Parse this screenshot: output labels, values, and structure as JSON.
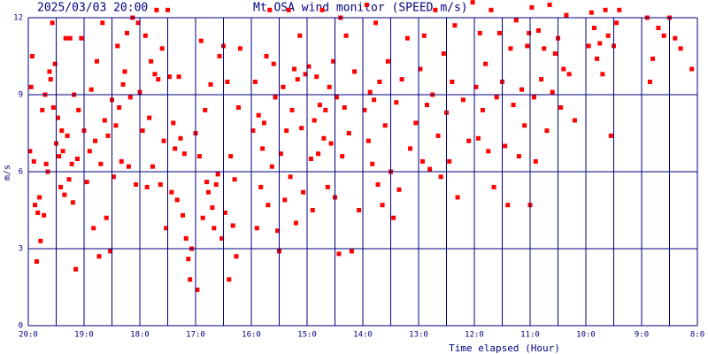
{
  "chart_data": {
    "type": "scatter",
    "timestamp": "2025/03/03 20:00",
    "title": "Mt.OSA wind monitor (SPEED m/s)",
    "y_label": "m/s",
    "x_label": "Time elapsed (Hour)",
    "color": "#ff0000",
    "grid_color": "#000080",
    "grid": true,
    "xlim": [
      20,
      8
    ],
    "xticks": [
      {
        "value": 20,
        "label": "20:0"
      },
      {
        "value": 19,
        "label": "19:0"
      },
      {
        "value": 18,
        "label": "18:0"
      },
      {
        "value": 17,
        "label": "17:0"
      },
      {
        "value": 16,
        "label": "16:0"
      },
      {
        "value": 15,
        "label": "15:0"
      },
      {
        "value": 14,
        "label": "14:0"
      },
      {
        "value": 13,
        "label": "13:0"
      },
      {
        "value": 12,
        "label": "12:0"
      },
      {
        "value": 11,
        "label": "11:0"
      },
      {
        "value": 10,
        "label": "10:0"
      },
      {
        "value": 9,
        "label": "9:0"
      },
      {
        "value": 8,
        "label": "8:0"
      }
    ],
    "x_minor_grid": [
      19.5,
      18.5,
      17.5,
      16.5,
      15.5,
      14.5,
      13.5,
      12.5,
      11.5,
      10.5,
      9.5,
      8.5
    ],
    "ylim": [
      0,
      12
    ],
    "yticks": [
      0,
      3,
      6,
      9,
      12
    ],
    "x": [
      19.97,
      19.95,
      19.93,
      19.9,
      19.88,
      19.85,
      19.83,
      19.8,
      19.78,
      19.75,
      19.72,
      19.7,
      19.68,
      19.65,
      19.62,
      19.6,
      19.57,
      19.55,
      19.52,
      19.5,
      19.47,
      19.45,
      19.42,
      19.4,
      19.38,
      19.35,
      19.33,
      19.3,
      19.27,
      19.25,
      19.22,
      19.2,
      19.18,
      19.15,
      19.12,
      19.1,
      19.05,
      19.0,
      18.95,
      18.9,
      18.87,
      18.83,
      18.8,
      18.77,
      18.73,
      18.7,
      18.67,
      18.63,
      18.6,
      18.57,
      18.53,
      18.5,
      18.47,
      18.43,
      18.4,
      18.37,
      18.33,
      18.3,
      18.27,
      18.23,
      18.2,
      18.17,
      18.13,
      18.07,
      18.03,
      18.0,
      17.95,
      17.9,
      17.87,
      17.83,
      17.8,
      17.77,
      17.73,
      17.7,
      17.67,
      17.63,
      17.6,
      17.57,
      17.53,
      17.5,
      17.47,
      17.43,
      17.4,
      17.37,
      17.33,
      17.3,
      17.27,
      17.23,
      17.2,
      17.17,
      17.13,
      17.1,
      17.07,
      17.0,
      16.97,
      16.93,
      16.9,
      16.87,
      16.83,
      16.8,
      16.77,
      16.73,
      16.7,
      16.67,
      16.63,
      16.6,
      16.57,
      16.53,
      16.5,
      16.47,
      16.43,
      16.4,
      16.37,
      16.33,
      16.3,
      16.27,
      16.23,
      16.2,
      15.97,
      15.93,
      15.9,
      15.87,
      15.83,
      15.8,
      15.77,
      15.73,
      15.7,
      15.67,
      15.63,
      15.6,
      15.57,
      15.53,
      15.5,
      15.47,
      15.43,
      15.4,
      15.37,
      15.33,
      15.3,
      15.27,
      15.23,
      15.2,
      15.17,
      15.13,
      15.1,
      15.07,
      15.03,
      14.97,
      14.93,
      14.9,
      14.87,
      14.83,
      14.8,
      14.77,
      14.73,
      14.7,
      14.67,
      14.63,
      14.6,
      14.57,
      14.53,
      14.5,
      14.47,
      14.43,
      14.4,
      14.37,
      14.33,
      14.3,
      14.25,
      14.2,
      14.15,
      14.07,
      13.97,
      13.93,
      13.9,
      13.87,
      13.83,
      13.8,
      13.77,
      13.73,
      13.7,
      13.65,
      13.6,
      13.55,
      13.5,
      13.45,
      13.4,
      13.35,
      13.3,
      13.2,
      13.15,
      13.05,
      12.97,
      12.93,
      12.9,
      12.85,
      12.8,
      12.75,
      12.7,
      12.65,
      12.6,
      12.55,
      12.5,
      12.45,
      12.4,
      12.35,
      12.3,
      12.2,
      12.1,
      12.03,
      11.97,
      11.93,
      11.9,
      11.85,
      11.8,
      11.75,
      11.7,
      11.65,
      11.6,
      11.55,
      11.5,
      11.45,
      11.4,
      11.35,
      11.3,
      11.25,
      11.2,
      11.15,
      11.1,
      11.05,
      11.02,
      11.0,
      10.97,
      10.93,
      10.9,
      10.85,
      10.8,
      10.75,
      10.7,
      10.65,
      10.6,
      10.55,
      10.5,
      10.45,
      10.4,
      10.35,
      10.3,
      10.2,
      9.95,
      9.9,
      9.85,
      9.8,
      9.75,
      9.7,
      9.65,
      9.6,
      9.55,
      9.5,
      9.45,
      9.4,
      8.9,
      8.85,
      8.8,
      8.7,
      8.6,
      8.5,
      8.4,
      8.3,
      8.1
    ],
    "values": [
      6.8,
      9.3,
      10.5,
      6.4,
      4.7,
      2.5,
      4.4,
      5.0,
      3.3,
      8.4,
      4.3,
      9.0,
      6.3,
      6.0,
      9.9,
      9.6,
      11.8,
      8.5,
      10.2,
      7.1,
      8.1,
      6.6,
      5.4,
      7.6,
      6.8,
      5.1,
      11.2,
      7.4,
      5.7,
      11.2,
      6.3,
      4.8,
      9.0,
      2.2,
      6.5,
      8.4,
      11.2,
      7.6,
      5.6,
      6.8,
      9.2,
      3.8,
      7.2,
      10.3,
      2.7,
      6.3,
      11.8,
      8.0,
      4.2,
      7.4,
      2.9,
      8.8,
      5.8,
      7.8,
      10.9,
      8.5,
      6.4,
      9.4,
      9.9,
      11.4,
      6.2,
      8.9,
      12.0,
      5.5,
      11.8,
      9.1,
      7.6,
      11.3,
      5.4,
      8.1,
      10.3,
      6.2,
      9.8,
      12.3,
      9.6,
      5.5,
      10.8,
      7.2,
      3.8,
      12.3,
      9.7,
      5.2,
      7.9,
      6.9,
      4.9,
      9.7,
      7.3,
      4.3,
      6.7,
      3.4,
      2.6,
      1.8,
      3.0,
      7.5,
      1.4,
      6.6,
      11.1,
      4.2,
      8.4,
      5.6,
      5.2,
      9.4,
      4.6,
      3.8,
      5.5,
      5.9,
      10.5,
      3.4,
      10.9,
      4.4,
      9.5,
      1.8,
      6.6,
      3.9,
      5.7,
      2.7,
      8.5,
      10.8,
      7.6,
      9.5,
      3.8,
      8.2,
      5.4,
      6.9,
      7.9,
      10.5,
      4.7,
      12.3,
      6.2,
      10.2,
      8.9,
      3.7,
      2.9,
      6.7,
      9.3,
      4.9,
      7.6,
      12.3,
      5.8,
      8.4,
      10.0,
      4.0,
      9.6,
      11.3,
      7.7,
      5.2,
      9.8,
      10.1,
      6.5,
      4.5,
      8.0,
      9.7,
      6.7,
      8.6,
      12.3,
      7.3,
      8.4,
      5.4,
      9.3,
      7.1,
      10.3,
      5.0,
      8.9,
      2.8,
      12.0,
      6.6,
      8.5,
      11.3,
      7.5,
      2.9,
      9.9,
      4.5,
      8.4,
      12.5,
      7.2,
      9.1,
      6.3,
      8.8,
      11.8,
      5.5,
      9.5,
      4.7,
      7.8,
      10.3,
      6.0,
      4.2,
      8.7,
      5.3,
      9.6,
      11.2,
      6.9,
      7.9,
      10.0,
      6.4,
      11.3,
      8.6,
      6.1,
      9.0,
      12.3,
      7.4,
      5.8,
      10.6,
      8.3,
      6.4,
      9.5,
      11.7,
      5.0,
      8.8,
      7.2,
      12.6,
      9.3,
      7.3,
      11.4,
      8.4,
      10.2,
      6.8,
      12.3,
      5.4,
      8.9,
      11.4,
      9.5,
      7.0,
      4.7,
      10.8,
      8.6,
      11.9,
      6.6,
      9.2,
      7.8,
      10.9,
      11.4,
      4.7,
      12.4,
      8.9,
      6.4,
      11.5,
      9.6,
      10.8,
      7.6,
      12.5,
      9.1,
      10.6,
      11.2,
      8.5,
      10.0,
      12.1,
      9.8,
      8.0,
      10.9,
      12.2,
      11.6,
      10.4,
      11.0,
      9.8,
      12.3,
      11.3,
      7.4,
      10.9,
      11.8,
      12.3,
      12.0,
      9.5,
      10.4,
      11.6,
      11.3,
      12.0,
      11.2,
      10.8,
      10.0
    ]
  }
}
